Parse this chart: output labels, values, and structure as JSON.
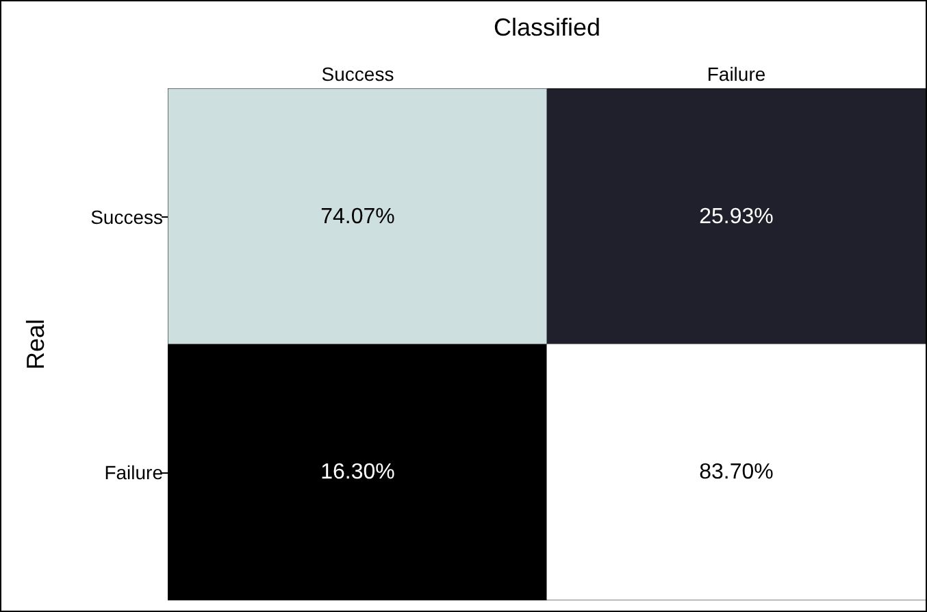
{
  "chart_data": {
    "type": "heatmap",
    "xlabel": "Classified",
    "ylabel": "Real",
    "categories": [
      "Success",
      "Failure"
    ],
    "y_categories": [
      "Success",
      "Failure"
    ],
    "cells": [
      [
        74.07,
        25.93
      ],
      [
        16.3,
        83.7
      ]
    ],
    "cell_labels": [
      [
        "74.07%",
        "25.93%"
      ],
      [
        "16.30%",
        "83.70%"
      ]
    ]
  }
}
